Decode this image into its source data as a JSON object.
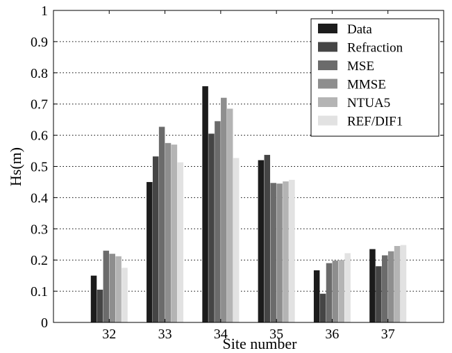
{
  "chart_data": {
    "type": "bar",
    "title": "",
    "xlabel": "Site number",
    "ylabel": "Hs(m)",
    "ylim": [
      0,
      1
    ],
    "yticks": [
      "0",
      "0.1",
      "0.2",
      "0.3",
      "0.4",
      "0.5",
      "0.6",
      "0.7",
      "0.8",
      "0.9",
      "1"
    ],
    "categories": [
      "32",
      "33",
      "34",
      "35",
      "36",
      "37"
    ],
    "grid": "horizontal dotted",
    "legend_position": "top-right",
    "series": [
      {
        "name": "Data",
        "color": "#1c1c1c",
        "values": [
          0.15,
          0.45,
          0.757,
          0.52,
          0.167,
          0.235
        ]
      },
      {
        "name": "Refraction",
        "color": "#454545",
        "values": [
          0.105,
          0.532,
          0.605,
          0.537,
          0.092,
          0.18
        ]
      },
      {
        "name": "MSE",
        "color": "#6b6b6b",
        "values": [
          0.23,
          0.627,
          0.645,
          0.447,
          0.19,
          0.215
        ]
      },
      {
        "name": "MMSE",
        "color": "#8e8e8e",
        "values": [
          0.22,
          0.575,
          0.72,
          0.445,
          0.198,
          0.228
        ]
      },
      {
        "name": "NTUA5",
        "color": "#b4b4b4",
        "values": [
          0.212,
          0.57,
          0.685,
          0.452,
          0.2,
          0.245
        ]
      },
      {
        "name": "REF/DIF1",
        "color": "#e2e2e2",
        "values": [
          0.175,
          0.513,
          0.527,
          0.457,
          0.222,
          0.248
        ]
      }
    ]
  }
}
